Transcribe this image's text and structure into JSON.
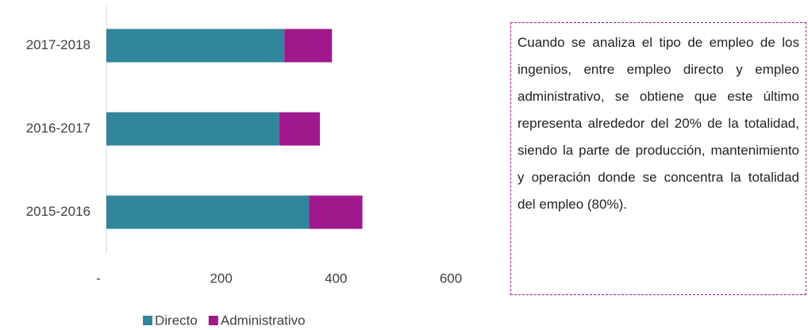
{
  "chart_data": {
    "type": "stacked-barh",
    "categories": [
      "2017-2018",
      "2016-2017",
      "2015-2016"
    ],
    "series": [
      {
        "name": "Directo",
        "color": "#31859c",
        "values": [
          310,
          301,
          353
        ]
      },
      {
        "name": "Administrativo",
        "color": "#a0198c",
        "values": [
          83,
          71,
          93
        ]
      }
    ],
    "xlim": [
      0,
      600
    ],
    "xticks": [
      {
        "value": 0,
        "label": "-"
      },
      200,
      400,
      600
    ],
    "legend": "bottom",
    "annotation": "Cuando se analiza el tipo de empleo de los ingenios, entre empleo directo y empleo administrativo, se obtiene que este último representa alrededor del 20% de la totalidad, siendo la parte de producción, mantenimiento y operación donde se concentra la totalidad del empleo (80%)."
  }
}
